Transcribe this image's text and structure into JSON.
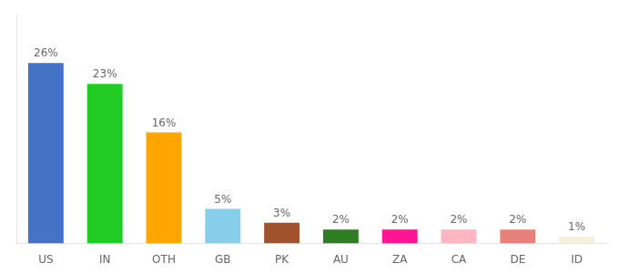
{
  "chart_data": {
    "type": "bar",
    "categories": [
      "US",
      "IN",
      "OTH",
      "GB",
      "PK",
      "AU",
      "ZA",
      "CA",
      "DE",
      "ID"
    ],
    "values": [
      26,
      23,
      16,
      5,
      3,
      2,
      2,
      2,
      2,
      1
    ],
    "value_labels": [
      "26%",
      "23%",
      "16%",
      "5%",
      "3%",
      "2%",
      "2%",
      "2%",
      "2%",
      "1%"
    ],
    "data_labels": true,
    "colors": [
      "#4472C4",
      "#22CC22",
      "#FFA500",
      "#87CEEB",
      "#A0522D",
      "#2E7D22",
      "#FF1493",
      "#FFB6C1",
      "#E8807A",
      "#F5F0DC"
    ],
    "ylim": [
      0,
      33
    ],
    "grid": false,
    "tick_labels": "x"
  }
}
